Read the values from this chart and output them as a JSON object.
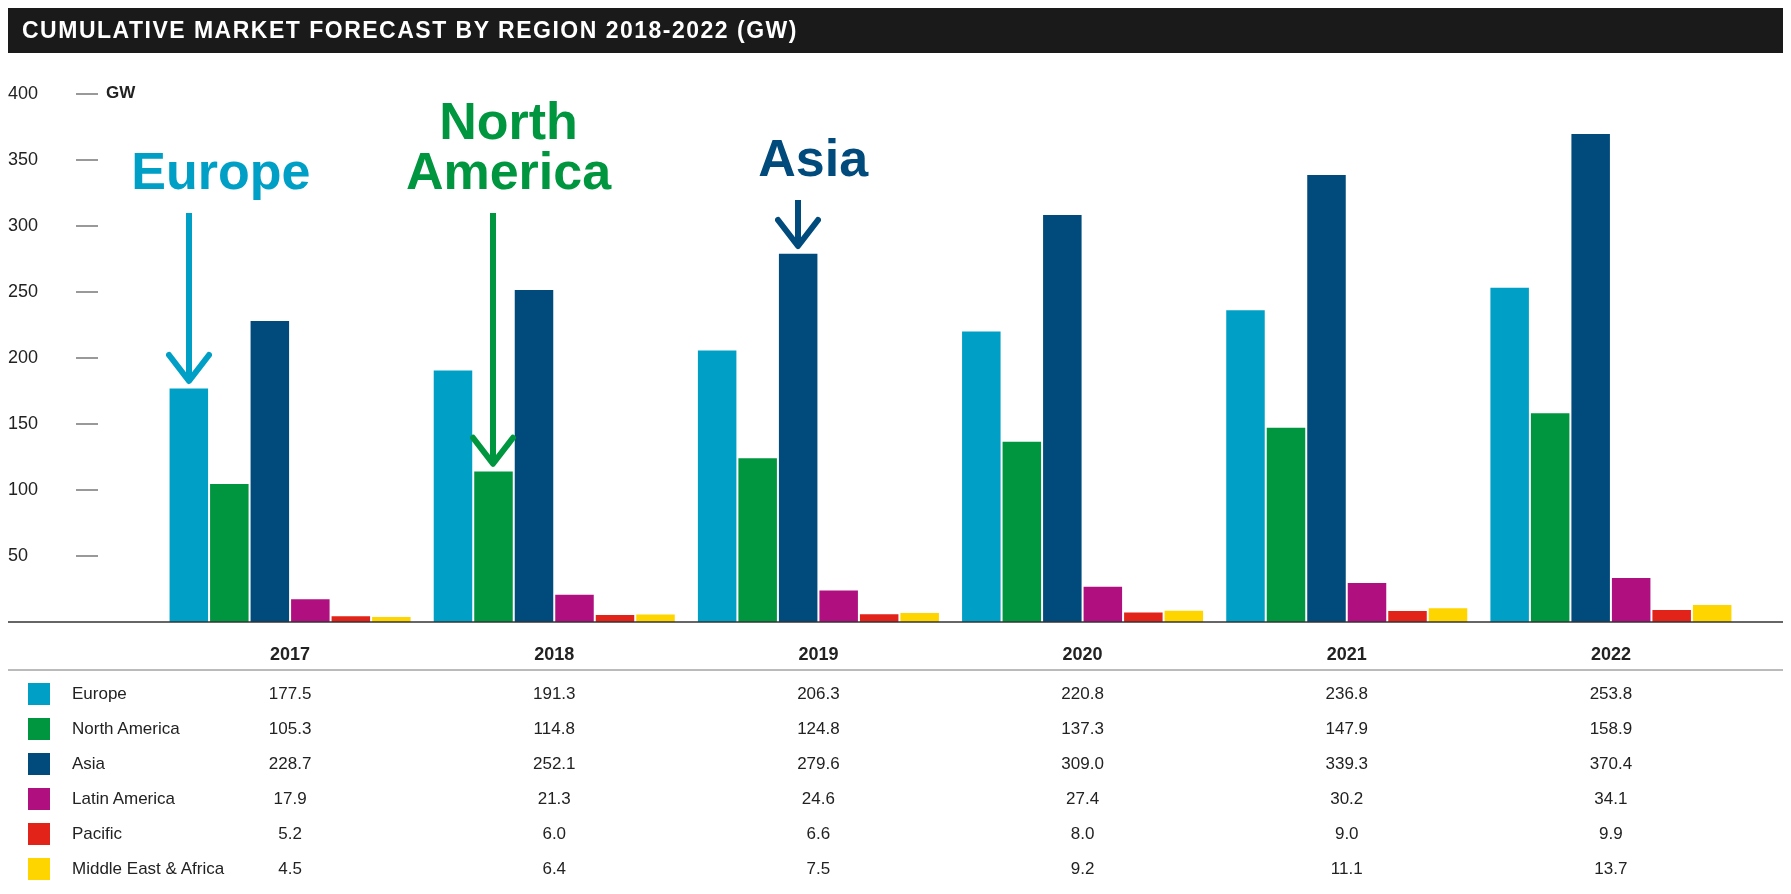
{
  "chart_data": {
    "type": "bar",
    "title": "CUMULATIVE MARKET FORECAST BY REGION 2018-2022 (GW)",
    "ylabel": "GW",
    "categories": [
      "2017",
      "2018",
      "2019",
      "2020",
      "2021",
      "2022"
    ],
    "series": [
      {
        "name": "Europe",
        "color": "#00a0c6",
        "values": [
          177.5,
          191.3,
          206.3,
          220.8,
          236.8,
          253.8
        ],
        "value_labels": [
          "177.5",
          "191.3",
          "206.3",
          "220.8",
          "236.8",
          "253.8"
        ]
      },
      {
        "name": "North America",
        "color": "#00963f",
        "values": [
          105.3,
          114.8,
          124.8,
          137.3,
          147.9,
          158.9
        ],
        "value_labels": [
          "105.3",
          "114.8",
          "124.8",
          "137.3",
          "147.9",
          "158.9"
        ]
      },
      {
        "name": "Asia",
        "color": "#004a7c",
        "values": [
          228.7,
          252.1,
          279.6,
          309.0,
          339.3,
          370.4
        ],
        "value_labels": [
          "228.7",
          "252.1",
          "279.6",
          "309.0",
          "339.3",
          "370.4"
        ]
      },
      {
        "name": "Latin America",
        "color": "#b0107f",
        "values": [
          17.9,
          21.3,
          24.6,
          27.4,
          30.2,
          34.1
        ],
        "value_labels": [
          "17.9",
          "21.3",
          "24.6",
          "27.4",
          "30.2",
          "34.1"
        ]
      },
      {
        "name": "Pacific",
        "color": "#e2231a",
        "values": [
          5.2,
          6.0,
          6.6,
          8.0,
          9.0,
          9.9
        ],
        "value_labels": [
          "5.2",
          "6.0",
          "6.6",
          "8.0",
          "9.0",
          "9.9"
        ]
      },
      {
        "name": "Middle East & Africa",
        "color": "#ffd500",
        "values": [
          4.5,
          6.4,
          7.5,
          9.2,
          11.1,
          13.7
        ],
        "value_labels": [
          "4.5",
          "6.4",
          "7.5",
          "9.2",
          "11.1",
          "13.7"
        ]
      }
    ],
    "ylim": [
      0,
      400
    ],
    "yticks": [
      50,
      100,
      150,
      200,
      250,
      300,
      350,
      400
    ],
    "grid": false,
    "legend": "bottom",
    "annotations": [
      "Europe",
      "North America",
      "Asia"
    ]
  }
}
